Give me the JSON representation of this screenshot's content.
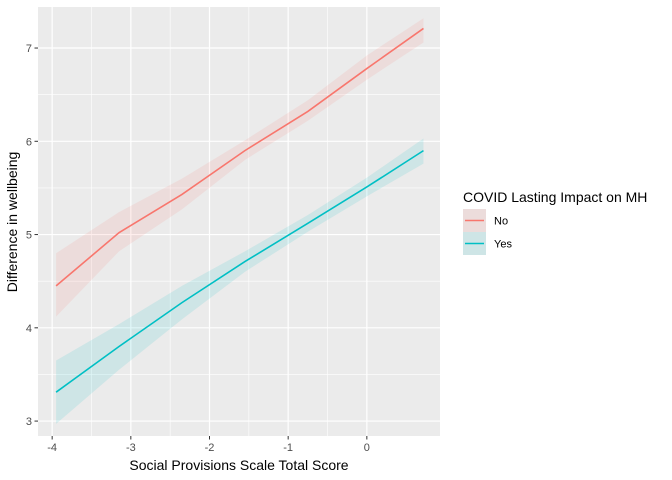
{
  "chart_data": {
    "type": "line",
    "xlabel": "Social Provisions Scale Total Score",
    "ylabel": "Difference in wellbeing",
    "xlim": [
      -4.18,
      0.93
    ],
    "ylim": [
      2.84,
      7.44
    ],
    "x_ticks": [
      -4,
      -3,
      -2,
      -1,
      0
    ],
    "x_tick_labels": [
      "-4",
      "-3",
      "-2",
      "-1",
      "0"
    ],
    "y_ticks": [
      3,
      4,
      5,
      6,
      7
    ],
    "y_tick_labels": [
      "3",
      "4",
      "5",
      "6",
      "7"
    ],
    "grid": true,
    "legend": {
      "title": "COVID Lasting Impact on MH",
      "position": "right"
    },
    "series": [
      {
        "name": "No",
        "color": "#F8766D",
        "x": [
          -3.95,
          -3.15,
          -2.35,
          -1.55,
          -0.75,
          0.0,
          0.72
        ],
        "y": [
          4.45,
          5.02,
          5.43,
          5.9,
          6.32,
          6.78,
          7.21
        ],
        "lower": [
          4.12,
          4.82,
          5.27,
          5.8,
          6.22,
          6.66,
          7.06
        ],
        "upper": [
          4.8,
          5.24,
          5.6,
          6.01,
          6.44,
          6.92,
          7.32
        ]
      },
      {
        "name": "Yes",
        "color": "#00BFC4",
        "x": [
          -3.95,
          -3.15,
          -2.35,
          -1.55,
          -0.75,
          0.0,
          0.72
        ],
        "y": [
          3.31,
          3.8,
          4.27,
          4.71,
          5.12,
          5.51,
          5.9
        ],
        "lower": [
          2.97,
          3.55,
          4.09,
          4.6,
          5.03,
          5.41,
          5.76
        ],
        "upper": [
          3.65,
          4.04,
          4.45,
          4.82,
          5.21,
          5.61,
          6.03
        ]
      }
    ]
  }
}
